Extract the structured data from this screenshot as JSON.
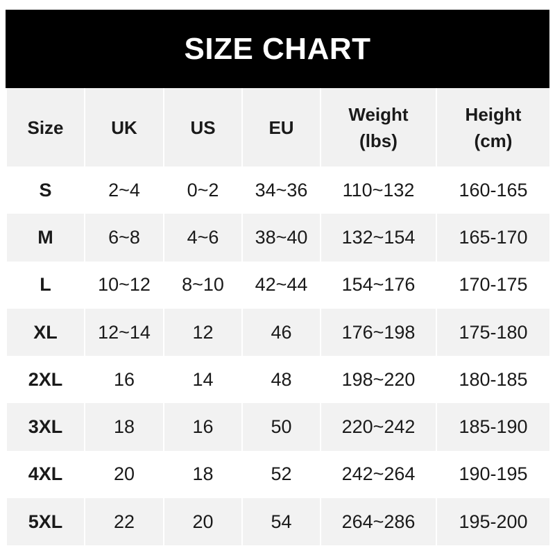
{
  "title": "SIZE CHART",
  "headers": [
    "Size",
    "UK",
    "US",
    "EU",
    "Weight\n(lbs)",
    "Height\n(cm)"
  ],
  "rows": [
    [
      "S",
      "2~4",
      "0~2",
      "34~36",
      "110~132",
      "160-165"
    ],
    [
      "M",
      "6~8",
      "4~6",
      "38~40",
      "132~154",
      "165-170"
    ],
    [
      "L",
      "10~12",
      "8~10",
      "42~44",
      "154~176",
      "170-175"
    ],
    [
      "XL",
      "12~14",
      "12",
      "46",
      "176~198",
      "175-180"
    ],
    [
      "2XL",
      "16",
      "14",
      "48",
      "198~220",
      "180-185"
    ],
    [
      "3XL",
      "18",
      "16",
      "50",
      "220~242",
      "185-190"
    ],
    [
      "4XL",
      "20",
      "18",
      "52",
      "242~264",
      "190-195"
    ],
    [
      "5XL",
      "22",
      "20",
      "54",
      "264~286",
      "195-200"
    ]
  ]
}
